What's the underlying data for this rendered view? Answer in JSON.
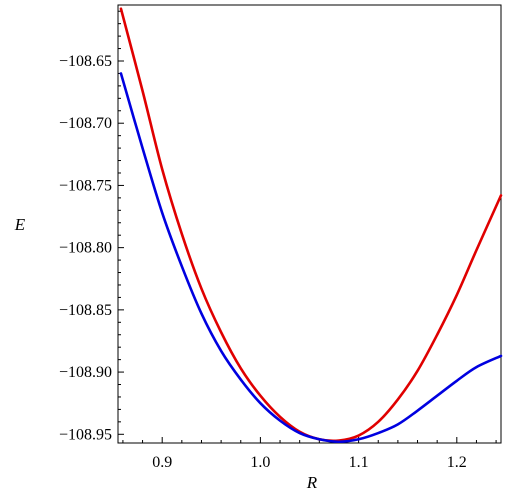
{
  "chart_data": {
    "type": "line",
    "title": "",
    "xlabel": "R",
    "ylabel": "E",
    "xlim": [
      0.855,
      1.245
    ],
    "ylim": [
      -108.957,
      -108.605
    ],
    "grid": false,
    "x_ticks": [
      0.9,
      1.0,
      1.1,
      1.2
    ],
    "x_tick_labels": [
      "0.9",
      "1.0",
      "1.1",
      "1.2"
    ],
    "y_ticks": [
      -108.65,
      -108.7,
      -108.75,
      -108.8,
      -108.85,
      -108.9,
      -108.95
    ],
    "y_tick_labels": [
      "−108.65",
      "−108.70",
      "−108.75",
      "−108.80",
      "−108.85",
      "−108.90",
      "−108.95"
    ],
    "series": [
      {
        "color": "#e00000",
        "x": [
          0.858,
          0.88,
          0.9,
          0.92,
          0.94,
          0.96,
          0.98,
          1.0,
          1.02,
          1.04,
          1.06,
          1.08,
          1.1,
          1.12,
          1.14,
          1.16,
          1.18,
          1.2,
          1.22,
          1.245
        ],
        "y": [
          -108.608,
          -108.674,
          -108.737,
          -108.789,
          -108.833,
          -108.868,
          -108.897,
          -108.919,
          -108.936,
          -108.948,
          -108.954,
          -108.955,
          -108.951,
          -108.94,
          -108.922,
          -108.899,
          -108.87,
          -108.838,
          -108.802,
          -108.758
        ]
      },
      {
        "color": "#0000e0",
        "x": [
          0.858,
          0.88,
          0.9,
          0.92,
          0.94,
          0.96,
          0.98,
          1.0,
          1.02,
          1.04,
          1.06,
          1.08,
          1.1,
          1.12,
          1.14,
          1.16,
          1.18,
          1.2,
          1.22,
          1.245
        ],
        "y": [
          -108.66,
          -108.72,
          -108.772,
          -108.815,
          -108.853,
          -108.883,
          -108.906,
          -108.925,
          -108.939,
          -108.949,
          -108.954,
          -108.956,
          -108.954,
          -108.949,
          -108.942,
          -108.931,
          -108.919,
          -108.907,
          -108.896,
          -108.887
        ]
      }
    ]
  }
}
